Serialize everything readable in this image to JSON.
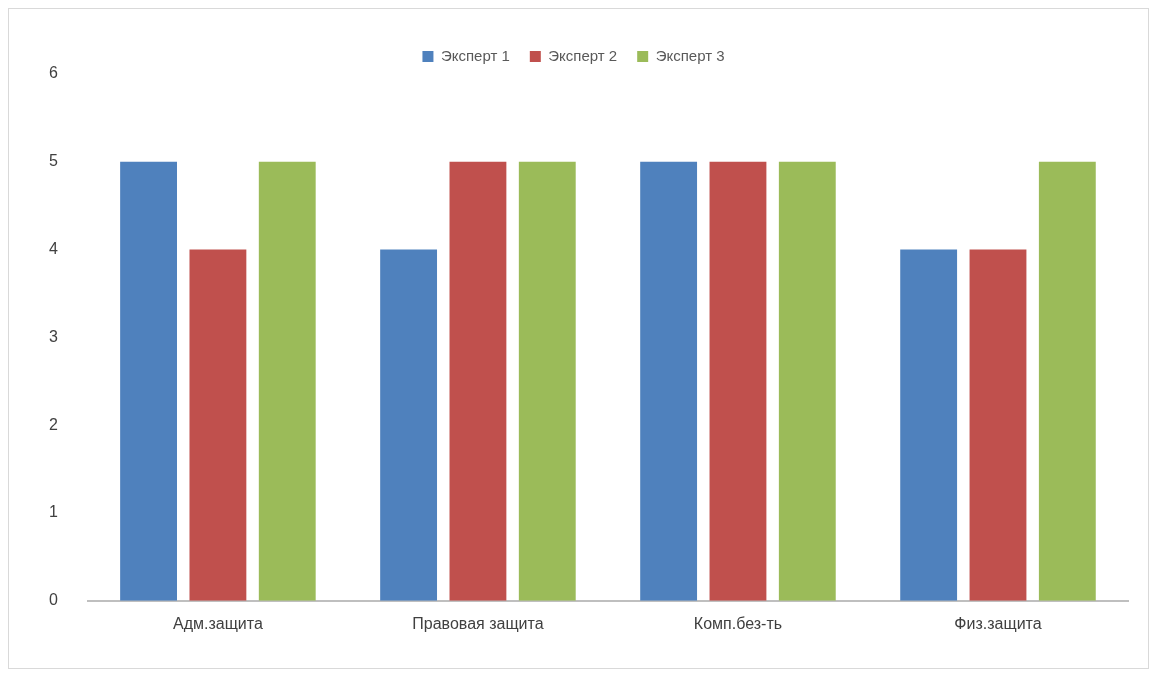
{
  "chart_data": {
    "type": "bar",
    "categories": [
      "Адм.защита",
      "Правовая защита",
      "Комп.без-ть",
      "Физ.защита"
    ],
    "series": [
      {
        "name": "Эксперт 1",
        "color": "#4f81bd",
        "values": [
          5,
          4,
          5,
          4
        ]
      },
      {
        "name": "Эксперт 2",
        "color": "#c0504d",
        "values": [
          4,
          5,
          5,
          4
        ]
      },
      {
        "name": "Эксперт 3",
        "color": "#9bbb59",
        "values": [
          5,
          5,
          5,
          5
        ]
      }
    ],
    "ylim": [
      0,
      6
    ],
    "yticks": [
      0,
      1,
      2,
      3,
      4,
      5,
      6
    ],
    "grid": false,
    "legend": "top"
  }
}
